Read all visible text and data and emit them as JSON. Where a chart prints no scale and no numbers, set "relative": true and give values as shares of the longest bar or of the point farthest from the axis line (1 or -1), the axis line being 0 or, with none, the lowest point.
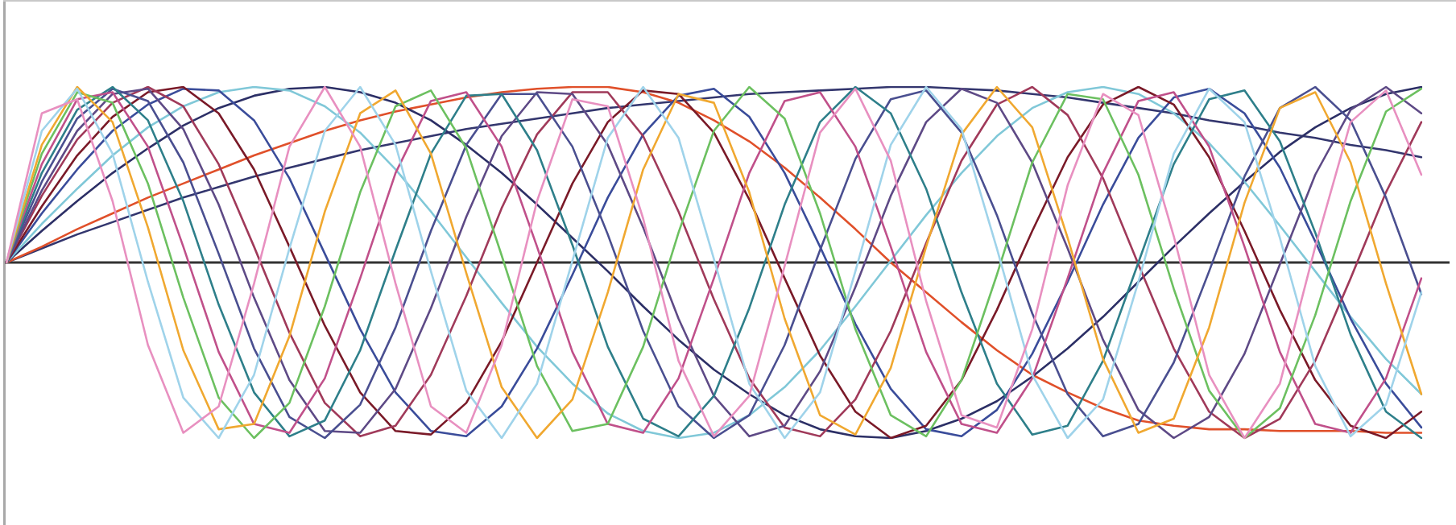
{
  "chart_data": {
    "type": "line",
    "relative": true,
    "tick_labels": false,
    "legend": false,
    "marker": "none",
    "line_style": "solid",
    "categories": [
      null,
      null,
      null,
      null,
      null,
      null,
      null,
      null,
      null,
      null,
      null,
      null,
      null,
      null,
      null,
      null,
      null,
      null,
      null,
      null,
      null,
      null,
      null,
      null,
      null,
      null,
      null,
      null,
      null,
      null,
      null,
      null,
      null,
      null,
      null,
      null,
      null,
      null,
      null,
      null,
      null
    ],
    "series": [
      {
        "color": "#e890c0",
        "values": [
          0,
          0.85,
          0.93,
          0.35,
          -0.47,
          -0.97,
          -0.82,
          -0.12,
          0.66,
          1,
          0.66,
          -0.12,
          -0.82,
          -0.97,
          -0.47,
          0.35,
          0.93,
          0.89,
          0.25,
          -0.56,
          -0.99,
          -0.76,
          -0.02,
          0.74,
          0.99,
          0.58,
          -0.22,
          -0.87,
          -0.94,
          -0.38,
          0.44,
          0.96,
          0.84,
          0.15,
          -0.64,
          -1,
          -0.69,
          0.09,
          0.8,
          0.98,
          0.5
        ]
      },
      {
        "color": "#9fd3ea",
        "values": [
          0,
          0.75,
          0.99,
          0.62,
          -0.11,
          -0.77,
          -1,
          -0.64,
          0.08,
          0.75,
          1,
          0.67,
          -0.05,
          -0.73,
          -1,
          -0.69,
          0.01,
          0.71,
          1,
          0.71,
          0.02,
          -0.69,
          -1,
          -0.74,
          -0.05,
          0.67,
          1,
          0.76,
          0.08,
          -0.64,
          -1,
          -0.78,
          -0.11,
          0.62,
          0.99,
          0.8,
          0.14,
          -0.59,
          -0.99,
          -0.81,
          -0.17
        ]
      },
      {
        "color": "#f0a830",
        "values": [
          0,
          0.67,
          1,
          0.8,
          0.2,
          -0.5,
          -0.95,
          -0.92,
          -0.42,
          0.29,
          0.85,
          0.98,
          0.62,
          -0.06,
          -0.71,
          -1,
          -0.78,
          -0.17,
          0.53,
          0.96,
          0.91,
          0.4,
          -0.32,
          -0.87,
          -0.98,
          -0.6,
          0.09,
          0.73,
          1,
          0.77,
          0.14,
          -0.55,
          -0.97,
          -0.89,
          -0.37,
          0.34,
          0.88,
          0.97,
          0.57,
          -0.12,
          -0.75
        ]
      },
      {
        "color": "#6cc060",
        "values": [
          0,
          0.62,
          0.97,
          0.91,
          0.45,
          -0.2,
          -0.77,
          -1,
          -0.8,
          -0.25,
          0.4,
          0.89,
          0.98,
          0.65,
          0.04,
          -0.59,
          -0.96,
          -0.92,
          -0.48,
          0.17,
          0.75,
          1,
          0.82,
          0.28,
          -0.38,
          -0.87,
          -0.99,
          -0.67,
          -0.07,
          0.57,
          0.96,
          0.93,
          0.5,
          -0.15,
          -0.73,
          -1,
          -0.83,
          -0.3,
          0.35,
          0.86,
          0.99
        ]
      },
      {
        "color": "#c0508a",
        "values": [
          0,
          0.56,
          0.93,
          0.97,
          0.66,
          0.09,
          -0.51,
          -0.92,
          -0.97,
          -0.66,
          -0.09,
          0.51,
          0.92,
          0.97,
          0.66,
          0.09,
          -0.51,
          -0.92,
          -0.97,
          -0.66,
          -0.09,
          0.51,
          0.92,
          0.97,
          0.66,
          0.09,
          -0.51,
          -0.92,
          -0.97,
          -0.66,
          -0.09,
          0.51,
          0.92,
          0.97,
          0.66,
          0.09,
          -0.51,
          -0.92,
          -0.97,
          -0.66,
          -0.09
        ]
      },
      {
        "color": "#2e7f8a",
        "values": [
          0,
          0.51,
          0.87,
          1,
          0.81,
          0.35,
          -0.24,
          -0.74,
          -0.99,
          -0.9,
          -0.5,
          0.07,
          0.62,
          0.95,
          0.96,
          0.64,
          0.1,
          -0.48,
          -0.89,
          -0.99,
          -0.76,
          -0.26,
          0.33,
          0.8,
          1,
          0.85,
          0.42,
          -0.17,
          -0.69,
          -0.98,
          -0.93,
          -0.56,
          0,
          0.56,
          0.93,
          0.98,
          0.69,
          0.17,
          -0.41,
          -0.85,
          -1
        ]
      },
      {
        "color": "#4a4f90",
        "values": [
          0,
          0.46,
          0.82,
          0.99,
          0.92,
          0.57,
          0.05,
          -0.49,
          -0.88,
          -1,
          -0.81,
          -0.37,
          0.18,
          0.67,
          0.96,
          0.96,
          0.66,
          0.16,
          -0.39,
          -0.82,
          -1,
          -0.87,
          -0.47,
          0.07,
          0.59,
          0.93,
          0.98,
          0.74,
          0.27,
          -0.29,
          -0.75,
          -0.99,
          -0.92,
          -0.57,
          -0.05,
          0.49,
          0.88,
          1,
          0.81,
          0.37,
          -0.18
        ]
      },
      {
        "color": "#5e4a86",
        "values": [
          0,
          0.41,
          0.75,
          0.96,
          0.99,
          0.76,
          0.33,
          -0.2,
          -0.67,
          -0.96,
          -0.97,
          -0.72,
          -0.26,
          0.26,
          0.72,
          0.97,
          0.96,
          0.67,
          0.2,
          -0.32,
          -0.76,
          -0.99,
          -0.93,
          -0.62,
          -0.14,
          0.38,
          0.8,
          0.99,
          0.91,
          0.57,
          0.08,
          -0.44,
          -0.84,
          -1,
          -0.88,
          -0.52,
          -0.01,
          0.5,
          0.87,
          1,
          0.85
        ]
      },
      {
        "color": "#a03a5a",
        "values": [
          0,
          0.38,
          0.7,
          0.91,
          1,
          0.89,
          0.56,
          0.09,
          -0.4,
          -0.8,
          -0.99,
          -0.93,
          -0.64,
          -0.19,
          0.31,
          0.73,
          0.97,
          0.97,
          0.72,
          0.29,
          -0.21,
          -0.66,
          -0.94,
          -0.99,
          -0.78,
          -0.39,
          0.11,
          0.58,
          0.9,
          1,
          0.84,
          0.48,
          -0.01,
          -0.49,
          -0.85,
          -1,
          -0.89,
          -0.56,
          -0.09,
          0.4,
          0.8
        ]
      },
      {
        "color": "#7a1a28",
        "values": [
          0,
          0.32,
          0.61,
          0.83,
          0.97,
          1,
          0.85,
          0.53,
          0.09,
          -0.36,
          -0.74,
          -0.96,
          -0.98,
          -0.8,
          -0.45,
          0,
          0.45,
          0.8,
          0.98,
          0.96,
          0.74,
          0.36,
          -0.09,
          -0.53,
          -0.85,
          -1,
          -0.93,
          -0.67,
          -0.27,
          0.18,
          0.6,
          0.9,
          1,
          0.9,
          0.6,
          0.18,
          -0.27,
          -0.67,
          -0.93,
          -1,
          -0.85
        ]
      },
      {
        "color": "#3a4c9a",
        "values": [
          0,
          0.28,
          0.53,
          0.75,
          0.9,
          0.99,
          0.98,
          0.81,
          0.48,
          0.05,
          -0.38,
          -0.74,
          -0.96,
          -0.99,
          -0.82,
          -0.49,
          -0.07,
          0.37,
          0.73,
          0.95,
          0.99,
          0.83,
          0.51,
          0.09,
          -0.35,
          -0.72,
          -0.95,
          -0.99,
          -0.84,
          -0.52,
          -0.11,
          0.33,
          0.71,
          0.94,
          0.99,
          0.85,
          0.54,
          0.12,
          -0.32,
          -0.69,
          -0.94
        ]
      },
      {
        "color": "#80c8d8",
        "values": [
          0,
          0.22,
          0.42,
          0.61,
          0.77,
          0.89,
          0.97,
          1,
          0.98,
          0.89,
          0.74,
          0.53,
          0.29,
          0.03,
          -0.23,
          -0.48,
          -0.69,
          -0.86,
          -0.96,
          -1,
          -0.97,
          -0.87,
          -0.71,
          -0.5,
          -0.25,
          0.01,
          0.27,
          0.51,
          0.72,
          0.88,
          0.97,
          1,
          0.96,
          0.85,
          0.68,
          0.46,
          0.21,
          -0.05,
          -0.31,
          -0.55,
          -0.75
        ]
      },
      {
        "color": "#2c2f66",
        "values": [
          0,
          0.18,
          0.35,
          0.51,
          0.65,
          0.78,
          0.88,
          0.95,
          0.99,
          1,
          0.97,
          0.91,
          0.81,
          0.67,
          0.51,
          0.33,
          0.14,
          -0.05,
          -0.25,
          -0.44,
          -0.61,
          -0.75,
          -0.87,
          -0.95,
          -0.99,
          -1,
          -0.96,
          -0.89,
          -0.79,
          -0.65,
          -0.49,
          -0.31,
          -0.11,
          0.09,
          0.28,
          0.46,
          0.63,
          0.77,
          0.88,
          0.96,
          1
        ]
      },
      {
        "color": "#e0502a",
        "values": [
          0,
          0.09,
          0.19,
          0.28,
          0.37,
          0.45,
          0.53,
          0.61,
          0.68,
          0.75,
          0.81,
          0.86,
          0.9,
          0.94,
          0.97,
          0.99,
          1,
          1,
          0.97,
          0.91,
          0.81,
          0.69,
          0.54,
          0.37,
          0.19,
          0,
          -0.17,
          -0.34,
          -0.5,
          -0.64,
          -0.74,
          -0.83,
          -0.9,
          -0.93,
          -0.95,
          -0.95,
          -0.96,
          -0.96,
          -0.96,
          -0.97,
          -0.97
        ]
      },
      {
        "color": "#33366e",
        "values": [
          0,
          0.08,
          0.16,
          0.23,
          0.3,
          0.37,
          0.43,
          0.49,
          0.54,
          0.59,
          0.64,
          0.68,
          0.72,
          0.76,
          0.79,
          0.82,
          0.85,
          0.88,
          0.9,
          0.92,
          0.94,
          0.96,
          0.97,
          0.98,
          0.99,
          1,
          1,
          0.99,
          0.98,
          0.96,
          0.94,
          0.91,
          0.88,
          0.85,
          0.81,
          0.78,
          0.74,
          0.71,
          0.67,
          0.64,
          0.6
        ]
      }
    ]
  }
}
